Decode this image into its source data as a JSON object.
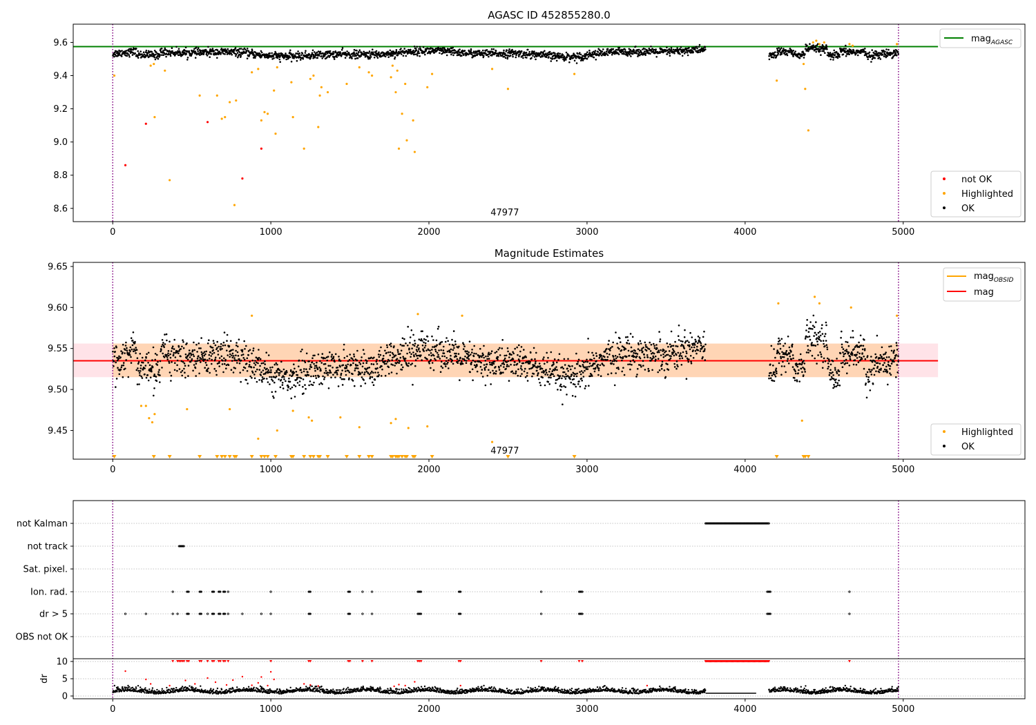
{
  "figure": {
    "background": "#ffffff",
    "colors": {
      "ok": "#000000",
      "highlighted": "#ffa500",
      "not_ok": "#ff0000",
      "mag_agasc": "#008000",
      "mag_obsid": "#ffa500",
      "mag": "#ff0000",
      "band_fill": "#ffc0cb",
      "obs_boundary": "#800080",
      "grid": "#b0b0b0"
    }
  },
  "chart_data": [
    {
      "type": "scatter",
      "title": "AGASC ID 452855280.0",
      "xlim": [
        -250,
        5770
      ],
      "ylim": [
        8.52,
        9.71
      ],
      "xticks": [
        0,
        1000,
        2000,
        3000,
        4000,
        5000
      ],
      "yticks": [
        8.6,
        8.8,
        9.0,
        9.2,
        9.4,
        9.6
      ],
      "annotation": "47977",
      "annotation_x": 2480,
      "legend_upper": {
        "position": "top-right",
        "entries": [
          {
            "name": "mag",
            "subscript": "AGASC",
            "color": "#008000"
          }
        ]
      },
      "legend_lower": {
        "position": "bottom-right",
        "entries": [
          {
            "name": "not OK",
            "color": "#ff0000"
          },
          {
            "name": "Highlighted",
            "color": "#ffa500"
          },
          {
            "name": "OK",
            "color": "#000000"
          }
        ]
      },
      "mag_agasc": 9.575,
      "obs_boundaries": [
        0,
        4970
      ],
      "ok_segments": [
        {
          "from": 0,
          "to": 3750,
          "n": 1850
        },
        {
          "from": 4150,
          "to": 4970,
          "n": 420
        }
      ],
      "highlighted_points": [
        {
          "x": 10,
          "y": 9.4
        },
        {
          "x": 240,
          "y": 9.46
        },
        {
          "x": 260,
          "y": 9.47
        },
        {
          "x": 265,
          "y": 9.15
        },
        {
          "x": 330,
          "y": 9.43
        },
        {
          "x": 360,
          "y": 8.77
        },
        {
          "x": 550,
          "y": 9.28
        },
        {
          "x": 660,
          "y": 9.28
        },
        {
          "x": 690,
          "y": 9.14
        },
        {
          "x": 710,
          "y": 9.15
        },
        {
          "x": 740,
          "y": 9.24
        },
        {
          "x": 770,
          "y": 8.62
        },
        {
          "x": 780,
          "y": 9.25
        },
        {
          "x": 880,
          "y": 9.42
        },
        {
          "x": 920,
          "y": 9.44
        },
        {
          "x": 940,
          "y": 9.13
        },
        {
          "x": 960,
          "y": 9.18
        },
        {
          "x": 980,
          "y": 9.17
        },
        {
          "x": 1020,
          "y": 9.31
        },
        {
          "x": 1030,
          "y": 9.05
        },
        {
          "x": 1040,
          "y": 9.45
        },
        {
          "x": 1130,
          "y": 9.36
        },
        {
          "x": 1140,
          "y": 9.15
        },
        {
          "x": 1210,
          "y": 8.96
        },
        {
          "x": 1250,
          "y": 9.38
        },
        {
          "x": 1270,
          "y": 9.4
        },
        {
          "x": 1300,
          "y": 9.09
        },
        {
          "x": 1310,
          "y": 9.28
        },
        {
          "x": 1320,
          "y": 9.33
        },
        {
          "x": 1360,
          "y": 9.3
        },
        {
          "x": 1480,
          "y": 9.35
        },
        {
          "x": 1560,
          "y": 9.45
        },
        {
          "x": 1620,
          "y": 9.42
        },
        {
          "x": 1640,
          "y": 9.4
        },
        {
          "x": 1760,
          "y": 9.39
        },
        {
          "x": 1770,
          "y": 9.46
        },
        {
          "x": 1790,
          "y": 9.3
        },
        {
          "x": 1800,
          "y": 9.43
        },
        {
          "x": 1810,
          "y": 8.96
        },
        {
          "x": 1830,
          "y": 9.17
        },
        {
          "x": 1850,
          "y": 9.35
        },
        {
          "x": 1860,
          "y": 9.01
        },
        {
          "x": 1900,
          "y": 9.13
        },
        {
          "x": 1910,
          "y": 8.94
        },
        {
          "x": 1990,
          "y": 9.33
        },
        {
          "x": 2020,
          "y": 9.41
        },
        {
          "x": 2400,
          "y": 9.44
        },
        {
          "x": 2500,
          "y": 9.32
        },
        {
          "x": 2920,
          "y": 9.41
        },
        {
          "x": 4200,
          "y": 9.37
        },
        {
          "x": 4370,
          "y": 9.47
        },
        {
          "x": 4380,
          "y": 9.32
        },
        {
          "x": 4400,
          "y": 9.07
        },
        {
          "x": 4430,
          "y": 9.6
        },
        {
          "x": 4450,
          "y": 9.61
        },
        {
          "x": 4470,
          "y": 9.59
        },
        {
          "x": 4500,
          "y": 9.6
        },
        {
          "x": 4660,
          "y": 9.59
        },
        {
          "x": 4680,
          "y": 9.58
        },
        {
          "x": 4960,
          "y": 9.59
        }
      ],
      "not_ok_points": [
        {
          "x": 80,
          "y": 8.86
        },
        {
          "x": 210,
          "y": 9.11
        },
        {
          "x": 600,
          "y": 9.12
        },
        {
          "x": 820,
          "y": 8.78
        },
        {
          "x": 940,
          "y": 8.96
        }
      ]
    },
    {
      "type": "scatter",
      "title": "Magnitude Estimates",
      "xlim": [
        -250,
        5770
      ],
      "ylim": [
        9.415,
        9.655
      ],
      "xticks": [
        0,
        1000,
        2000,
        3000,
        4000,
        5000
      ],
      "yticks": [
        9.45,
        9.5,
        9.55,
        9.6,
        9.65
      ],
      "annotation": "47977",
      "annotation_x": 2480,
      "legend_upper": {
        "position": "top-right",
        "entries": [
          {
            "name": "mag",
            "subscript": "OBSID",
            "color": "#ffa500"
          },
          {
            "name": "mag",
            "subscript": "",
            "color": "#ff0000"
          }
        ]
      },
      "legend_lower": {
        "position": "bottom-right",
        "entries": [
          {
            "name": "Highlighted",
            "color": "#ffa500"
          },
          {
            "name": "OK",
            "color": "#000000"
          }
        ]
      },
      "mag_obsid": 9.535,
      "mag": 9.535,
      "mag_band": [
        9.515,
        9.556
      ],
      "obs_boundaries": [
        0,
        4970
      ],
      "ok_segments": [
        {
          "from": 0,
          "to": 3750,
          "n": 1850
        },
        {
          "from": 4150,
          "to": 4970,
          "n": 420
        }
      ],
      "highlighted_points": [
        {
          "x": 180,
          "y": 9.48
        },
        {
          "x": 210,
          "y": 9.48
        },
        {
          "x": 230,
          "y": 9.465
        },
        {
          "x": 250,
          "y": 9.46
        },
        {
          "x": 265,
          "y": 9.47
        },
        {
          "x": 470,
          "y": 9.476
        },
        {
          "x": 740,
          "y": 9.476
        },
        {
          "x": 880,
          "y": 9.59
        },
        {
          "x": 920,
          "y": 9.44
        },
        {
          "x": 1040,
          "y": 9.45
        },
        {
          "x": 1140,
          "y": 9.474
        },
        {
          "x": 1240,
          "y": 9.466
        },
        {
          "x": 1260,
          "y": 9.462
        },
        {
          "x": 1440,
          "y": 9.466
        },
        {
          "x": 1560,
          "y": 9.454
        },
        {
          "x": 1760,
          "y": 9.459
        },
        {
          "x": 1790,
          "y": 9.464
        },
        {
          "x": 1870,
          "y": 9.453
        },
        {
          "x": 1930,
          "y": 9.592
        },
        {
          "x": 1990,
          "y": 9.455
        },
        {
          "x": 2210,
          "y": 9.59
        },
        {
          "x": 2400,
          "y": 9.436
        },
        {
          "x": 4210,
          "y": 9.605
        },
        {
          "x": 4360,
          "y": 9.462
        },
        {
          "x": 4440,
          "y": 9.613
        },
        {
          "x": 4470,
          "y": 9.605
        },
        {
          "x": 4670,
          "y": 9.6
        },
        {
          "x": 4960,
          "y": 9.59
        }
      ],
      "below_axis_markers": [
        10,
        260,
        360,
        550,
        660,
        690,
        710,
        740,
        770,
        780,
        880,
        940,
        960,
        980,
        1030,
        1130,
        1140,
        1210,
        1250,
        1270,
        1300,
        1310,
        1360,
        1480,
        1560,
        1620,
        1640,
        1760,
        1770,
        1790,
        1800,
        1810,
        1830,
        1850,
        1860,
        1900,
        1910,
        2020,
        2500,
        2920,
        4200,
        4370,
        4380,
        4400
      ]
    },
    {
      "type": "scatter",
      "title": "",
      "xlim": [
        -250,
        5770
      ],
      "xticks": [
        0,
        1000,
        2000,
        3000,
        4000,
        5000
      ],
      "flag_rows": [
        "not Kalman",
        "not track",
        "Sat. pixel.",
        "Ion. rad.",
        "dr > 5",
        "OBS not OK"
      ],
      "flag_events": {
        "not Kalman": [
          {
            "from": 3750,
            "to": 4150
          }
        ],
        "not track": [
          {
            "from": 420,
            "to": 450
          }
        ],
        "Sat. pixel.": [],
        "Ion. rad.": [
          {
            "from": 380,
            "to": 380
          },
          {
            "from": 470,
            "to": 480
          },
          {
            "from": 550,
            "to": 560
          },
          {
            "from": 630,
            "to": 640
          },
          {
            "from": 670,
            "to": 680
          },
          {
            "from": 700,
            "to": 710
          },
          {
            "from": 730,
            "to": 730
          },
          {
            "from": 1000,
            "to": 1000
          },
          {
            "from": 1240,
            "to": 1250
          },
          {
            "from": 1490,
            "to": 1500
          },
          {
            "from": 1580,
            "to": 1580
          },
          {
            "from": 1640,
            "to": 1640
          },
          {
            "from": 1930,
            "to": 1950
          },
          {
            "from": 2190,
            "to": 2200
          },
          {
            "from": 2710,
            "to": 2710
          },
          {
            "from": 2950,
            "to": 2970
          },
          {
            "from": 4140,
            "to": 4160
          },
          {
            "from": 4660,
            "to": 4660
          }
        ],
        "dr > 5": [
          {
            "from": 80,
            "to": 80
          },
          {
            "from": 210,
            "to": 210
          },
          {
            "from": 380,
            "to": 380
          },
          {
            "from": 410,
            "to": 410
          },
          {
            "from": 470,
            "to": 480
          },
          {
            "from": 550,
            "to": 560
          },
          {
            "from": 600,
            "to": 600
          },
          {
            "from": 630,
            "to": 640
          },
          {
            "from": 670,
            "to": 680
          },
          {
            "from": 700,
            "to": 710
          },
          {
            "from": 730,
            "to": 730
          },
          {
            "from": 820,
            "to": 820
          },
          {
            "from": 940,
            "to": 940
          },
          {
            "from": 1000,
            "to": 1000
          },
          {
            "from": 1240,
            "to": 1250
          },
          {
            "from": 1490,
            "to": 1500
          },
          {
            "from": 1580,
            "to": 1580
          },
          {
            "from": 1640,
            "to": 1640
          },
          {
            "from": 1930,
            "to": 1950
          },
          {
            "from": 2190,
            "to": 2200
          },
          {
            "from": 2710,
            "to": 2710
          },
          {
            "from": 2950,
            "to": 2970
          },
          {
            "from": 4140,
            "to": 4160
          },
          {
            "from": 4660,
            "to": 4660
          }
        ],
        "OBS not OK": []
      },
      "dr_ylabel": "dr",
      "dr_yticks": [
        0,
        5,
        10
      ],
      "dr_ylim": [
        -0.8,
        10.8
      ],
      "dr_segments": [
        {
          "from": 0,
          "to": 3750,
          "n": 1850
        },
        {
          "from": 4150,
          "to": 4970,
          "n": 420
        }
      ],
      "dr_saturated_x": [
        380,
        410,
        420,
        430,
        440,
        450,
        470,
        480,
        550,
        560,
        600,
        630,
        640,
        670,
        680,
        700,
        710,
        730,
        1000,
        1240,
        1250,
        1490,
        1500,
        1580,
        1640,
        1930,
        1940,
        1950,
        2190,
        2200,
        2710,
        2950,
        2970,
        4660
      ],
      "dr_kalman_block": {
        "from": 3750,
        "to": 4150
      },
      "dr_red_points": [
        {
          "x": 80,
          "y": 7.2
        },
        {
          "x": 210,
          "y": 4.8
        },
        {
          "x": 240,
          "y": 3.5
        },
        {
          "x": 360,
          "y": 3.0
        },
        {
          "x": 460,
          "y": 4.5
        },
        {
          "x": 520,
          "y": 3.5
        },
        {
          "x": 600,
          "y": 5.2
        },
        {
          "x": 650,
          "y": 4.0
        },
        {
          "x": 720,
          "y": 3.2
        },
        {
          "x": 760,
          "y": 4.6
        },
        {
          "x": 820,
          "y": 5.6
        },
        {
          "x": 880,
          "y": 3.1
        },
        {
          "x": 920,
          "y": 3.8
        },
        {
          "x": 940,
          "y": 5.5
        },
        {
          "x": 980,
          "y": 3.0
        },
        {
          "x": 1000,
          "y": 7.0
        },
        {
          "x": 1020,
          "y": 4.8
        },
        {
          "x": 1210,
          "y": 3.5
        },
        {
          "x": 1250,
          "y": 3.2
        },
        {
          "x": 1300,
          "y": 2.9
        },
        {
          "x": 1780,
          "y": 2.8
        },
        {
          "x": 1810,
          "y": 3.3
        },
        {
          "x": 1850,
          "y": 3.0
        },
        {
          "x": 1910,
          "y": 4.1
        },
        {
          "x": 2200,
          "y": 3.0
        },
        {
          "x": 3380,
          "y": 3.0
        }
      ]
    }
  ]
}
